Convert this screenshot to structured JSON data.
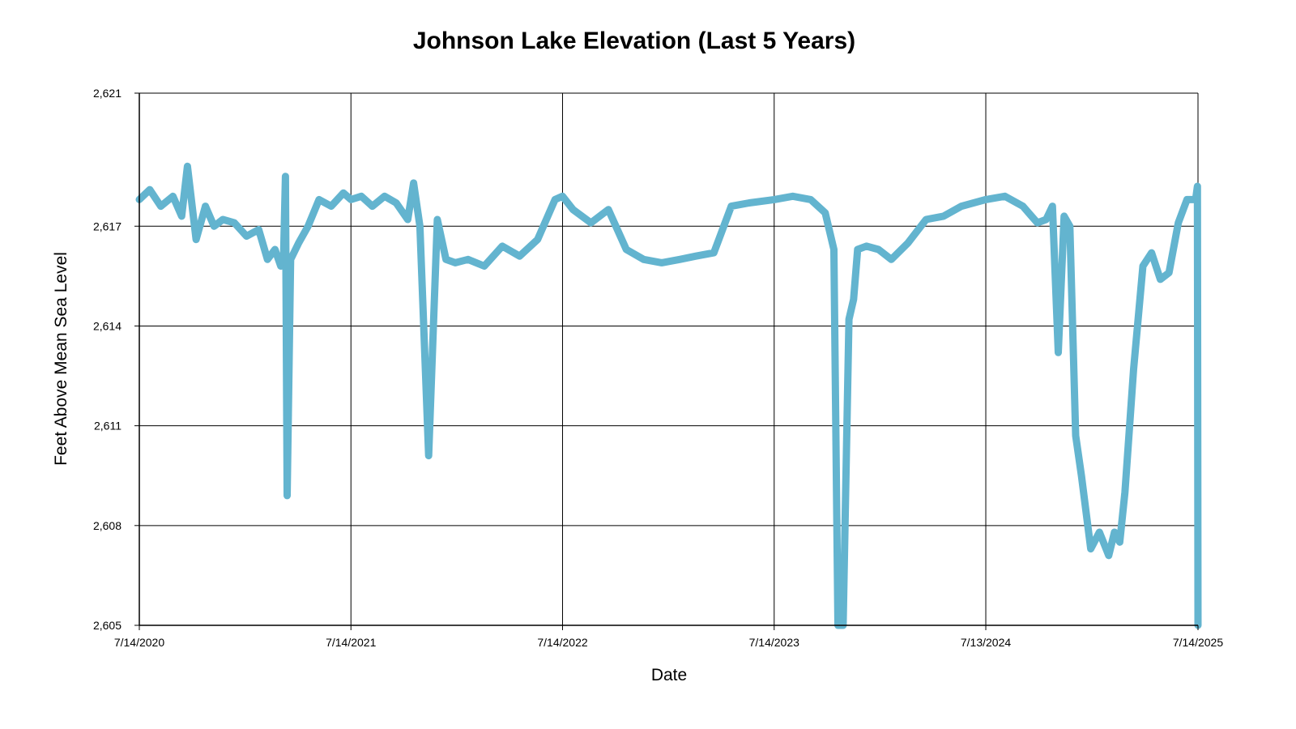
{
  "chart_data": {
    "type": "line",
    "title": "Johnson Lake Elevation (Last 5 Years)",
    "xlabel": "Date",
    "ylabel": "Feet Above Mean Sea Level",
    "ylim": [
      2605,
      2621
    ],
    "xlim": [
      "2020-07-14",
      "2025-07-14"
    ],
    "y_ticks": [
      2605,
      2608,
      2611,
      2614,
      2617,
      2621
    ],
    "y_tick_labels": [
      "2,605",
      "2,608",
      "2,611",
      "2,614",
      "2,617",
      "2,621"
    ],
    "x_ticks": [
      "2020-07-14",
      "2021-07-14",
      "2022-07-14",
      "2023-07-14",
      "2024-07-13",
      "2025-07-14"
    ],
    "x_tick_labels": [
      "7/14/2020",
      "7/14/2021",
      "7/14/2022",
      "7/14/2023",
      "7/13/2024",
      "7/14/2025"
    ],
    "grid": true,
    "series": [
      {
        "color": "#63b4cf",
        "x": [
          "2020-07-14",
          "2020-08-01",
          "2020-08-20",
          "2020-09-10",
          "2020-09-25",
          "2020-10-05",
          "2020-10-20",
          "2020-11-05",
          "2020-11-20",
          "2020-12-05",
          "2020-12-25",
          "2021-01-15",
          "2021-02-05",
          "2021-02-20",
          "2021-03-05",
          "2021-03-15",
          "2021-03-20",
          "2021-03-23",
          "2021-03-26",
          "2021-04-01",
          "2021-04-15",
          "2021-05-01",
          "2021-05-20",
          "2021-06-10",
          "2021-07-01",
          "2021-07-14",
          "2021-08-01",
          "2021-08-20",
          "2021-09-10",
          "2021-09-30",
          "2021-10-20",
          "2021-10-30",
          "2021-11-10",
          "2021-11-25",
          "2021-12-10",
          "2021-12-25",
          "2022-01-10",
          "2022-02-01",
          "2022-03-01",
          "2022-04-01",
          "2022-05-01",
          "2022-06-01",
          "2022-07-01",
          "2022-07-14",
          "2022-08-01",
          "2022-09-01",
          "2022-10-01",
          "2022-11-01",
          "2022-12-01",
          "2023-01-01",
          "2023-02-01",
          "2023-03-01",
          "2023-04-01",
          "2023-05-01",
          "2023-06-01",
          "2023-07-14",
          "2023-08-15",
          "2023-09-15",
          "2023-10-10",
          "2023-10-25",
          "2023-11-01",
          "2023-11-10",
          "2023-11-20",
          "2023-11-28",
          "2023-12-05",
          "2023-12-20",
          "2024-01-10",
          "2024-02-01",
          "2024-03-01",
          "2024-04-01",
          "2024-05-01",
          "2024-06-01",
          "2024-07-13",
          "2024-08-15",
          "2024-09-15",
          "2024-10-10",
          "2024-10-25",
          "2024-11-05",
          "2024-11-15",
          "2024-11-25",
          "2024-12-05",
          "2024-12-15",
          "2024-12-25",
          "2025-01-10",
          "2025-01-25",
          "2025-02-10",
          "2025-02-20",
          "2025-03-01",
          "2025-03-10",
          "2025-03-25",
          "2025-04-10",
          "2025-04-25",
          "2025-05-10",
          "2025-05-25",
          "2025-06-10",
          "2025-06-25",
          "2025-07-10",
          "2025-07-13",
          "2025-07-14"
        ],
        "values": [
          2617.8,
          2618.1,
          2617.6,
          2617.9,
          2617.3,
          2618.8,
          2616.6,
          2617.6,
          2617.0,
          2617.2,
          2617.1,
          2616.7,
          2616.9,
          2616.0,
          2616.3,
          2615.8,
          2616.2,
          2618.5,
          2608.9,
          2616.0,
          2616.5,
          2617.0,
          2617.8,
          2617.6,
          2618.0,
          2617.8,
          2617.9,
          2617.6,
          2617.9,
          2617.7,
          2617.2,
          2618.3,
          2617.0,
          2610.1,
          2617.2,
          2616.0,
          2615.9,
          2616.0,
          2615.8,
          2616.4,
          2616.1,
          2616.6,
          2617.8,
          2617.9,
          2617.5,
          2617.1,
          2617.5,
          2616.3,
          2616.0,
          2615.9,
          2616.0,
          2616.1,
          2616.2,
          2617.6,
          2617.7,
          2617.8,
          2617.9,
          2617.8,
          2617.4,
          2616.3,
          2605.0,
          2605.0,
          2614.2,
          2614.8,
          2616.3,
          2616.4,
          2616.3,
          2616.0,
          2616.5,
          2617.2,
          2617.3,
          2617.6,
          2617.8,
          2617.9,
          2617.6,
          2617.1,
          2617.2,
          2617.6,
          2613.2,
          2617.3,
          2617.0,
          2610.7,
          2609.5,
          2607.3,
          2607.8,
          2607.1,
          2607.8,
          2607.5,
          2609.0,
          2612.7,
          2615.8,
          2616.2,
          2615.4,
          2615.6,
          2617.1,
          2617.8,
          2617.8,
          2618.2,
          2605.0
        ]
      }
    ]
  }
}
